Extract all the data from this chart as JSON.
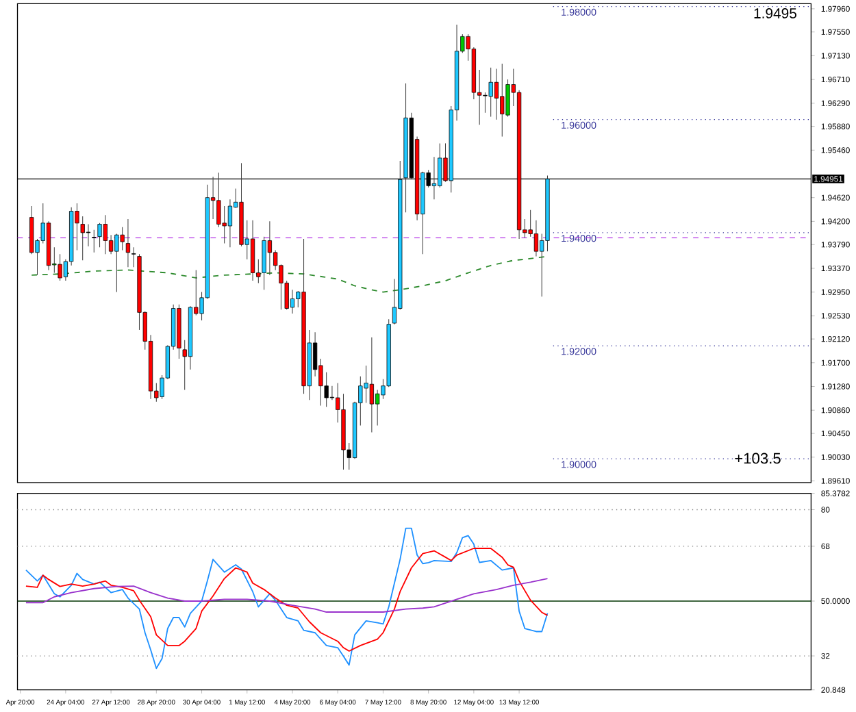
{
  "chart_data": [
    {
      "type": "candlestick",
      "ylim": [
        1.8958,
        1.9805
      ],
      "tick_labels": "y",
      "categories": [
        null,
        null,
        null,
        null,
        null,
        null,
        null,
        null,
        null,
        null,
        null,
        null,
        null,
        null,
        null,
        null,
        null,
        null,
        null,
        null,
        null,
        null,
        null,
        null,
        null,
        null,
        null,
        null,
        null,
        null,
        null,
        null,
        null,
        null,
        null,
        null,
        null,
        null,
        null,
        null,
        null,
        null,
        null,
        null,
        null,
        null,
        null,
        null,
        null,
        null,
        null,
        null,
        null,
        null,
        null,
        null,
        null,
        null,
        null,
        null,
        null,
        null,
        null,
        null,
        null,
        null,
        null,
        null,
        null,
        null,
        null,
        null,
        null,
        null,
        null,
        null,
        null,
        null,
        null,
        null,
        null,
        null,
        null,
        null,
        null,
        null,
        null,
        null,
        null,
        null,
        null,
        null,
        null,
        null,
        null,
        null,
        null,
        null,
        null,
        null,
        null,
        null,
        null,
        null,
        null,
        null,
        null,
        null,
        null,
        null,
        null,
        null,
        null,
        null,
        null,
        null,
        null,
        null,
        null,
        null,
        null,
        null,
        null,
        null,
        null,
        null,
        null,
        null,
        null,
        null,
        null,
        null,
        null,
        null,
        null,
        null,
        null,
        null,
        null,
        null
      ],
      "yticks": [
        {
          "value": 1.9796,
          "label": "1.97960"
        },
        {
          "value": 1.9755,
          "label": "1.97550"
        },
        {
          "value": 1.9713,
          "label": "1.97130"
        },
        {
          "value": 1.9671,
          "label": "1.96710"
        },
        {
          "value": 1.9629,
          "label": "1.96290"
        },
        {
          "value": 1.9588,
          "label": "1.95880"
        },
        {
          "value": 1.9546,
          "label": "1.95460"
        },
        {
          "value": 1.9462,
          "label": "1.94620"
        },
        {
          "value": 1.942,
          "label": "1.94200"
        },
        {
          "value": 1.9379,
          "label": "1.93790"
        },
        {
          "value": 1.9337,
          "label": "1.93370"
        },
        {
          "value": 1.9295,
          "label": "1.92950"
        },
        {
          "value": 1.9253,
          "label": "1.92530"
        },
        {
          "value": 1.9212,
          "label": "1.92120"
        },
        {
          "value": 1.917,
          "label": "1.91700"
        },
        {
          "value": 1.9128,
          "label": "1.91280"
        },
        {
          "value": 1.9086,
          "label": "1.90860"
        },
        {
          "value": 1.9045,
          "label": "1.90450"
        },
        {
          "value": 1.9003,
          "label": "1.90030"
        },
        {
          "value": 1.8961,
          "label": "1.89610"
        }
      ],
      "ohlc": [
        null,
        null,
        [
          1.9427,
          1.9447,
          1.9362,
          1.9365
        ],
        [
          1.9365,
          1.9389,
          1.9325,
          1.9386
        ],
        [
          1.9386,
          1.9452,
          1.9381,
          1.9417
        ],
        [
          1.9417,
          1.942,
          1.9334,
          1.9342
        ],
        [
          1.9343,
          1.9374,
          1.9329,
          1.9345
        ],
        [
          1.9344,
          1.9362,
          1.9315,
          1.932
        ],
        [
          1.9322,
          1.9353,
          1.9315,
          1.9349
        ],
        [
          1.9349,
          1.9445,
          1.9342,
          1.9438
        ],
        [
          1.9438,
          1.9452,
          1.9369,
          1.9417
        ],
        [
          1.9415,
          1.9429,
          1.9351,
          1.94
        ],
        [
          1.9401,
          1.9415,
          1.9376,
          1.94
        ],
        [
          1.9392,
          1.9405,
          1.9365,
          1.9391
        ],
        [
          1.9393,
          1.9417,
          1.9374,
          1.9415
        ],
        [
          1.9415,
          1.9431,
          1.9362,
          1.9386
        ],
        [
          1.9386,
          1.9396,
          1.9362,
          1.9367
        ],
        [
          1.9367,
          1.9398,
          1.9295,
          1.9396
        ],
        [
          1.9396,
          1.941,
          1.9369,
          1.9384
        ],
        [
          1.9381,
          1.9424,
          1.9339,
          1.9365
        ],
        [
          1.9363,
          1.9374,
          1.9339,
          1.9362
        ],
        [
          1.9358,
          1.9362,
          1.9228,
          1.9259
        ],
        [
          1.9259,
          1.9261,
          1.9193,
          1.9208
        ],
        [
          1.9208,
          1.9219,
          1.9106,
          1.912
        ],
        [
          1.912,
          1.9134,
          1.9101,
          1.9108
        ],
        [
          1.911,
          1.9148,
          1.9106,
          1.9143
        ],
        [
          1.9143,
          1.9201,
          1.9141,
          1.9199
        ],
        [
          1.9199,
          1.9273,
          1.9193,
          1.9266
        ],
        [
          1.9266,
          1.9273,
          1.9177,
          1.9196
        ],
        [
          1.9193,
          1.921,
          1.9122,
          1.9181
        ],
        [
          1.9181,
          1.927,
          1.9158,
          1.9268
        ],
        [
          1.9268,
          1.9334,
          1.9254,
          1.9257
        ],
        [
          1.9257,
          1.9295,
          1.9245,
          1.9285
        ],
        [
          1.9285,
          1.9485,
          1.9283,
          1.9462
        ],
        [
          1.9462,
          1.9499,
          1.9424,
          1.9457
        ],
        [
          1.9457,
          1.9506,
          1.941,
          1.9415
        ],
        [
          1.9417,
          1.9447,
          1.9381,
          1.9412
        ],
        [
          1.9412,
          1.9459,
          1.9374,
          1.9447
        ],
        [
          1.9445,
          1.9478,
          1.9444,
          1.9454
        ],
        [
          1.9454,
          1.9523,
          1.9376,
          1.9379
        ],
        [
          1.9379,
          1.9422,
          1.9353,
          1.9389
        ],
        [
          1.9389,
          1.9422,
          1.9315,
          1.9329
        ],
        [
          1.9329,
          1.9353,
          1.9311,
          1.9322
        ],
        [
          1.9329,
          1.9393,
          1.9299,
          1.9386
        ],
        [
          1.9386,
          1.942,
          1.9325,
          1.9365
        ],
        [
          1.9365,
          1.9369,
          1.9334,
          1.9342
        ],
        [
          1.9342,
          1.9344,
          1.9264,
          1.9311
        ],
        [
          1.9311,
          1.9315,
          1.9264,
          1.9266
        ],
        [
          1.9268,
          1.9299,
          1.9257,
          1.9283
        ],
        [
          1.9283,
          1.9297,
          1.9268,
          1.9295
        ],
        [
          1.9295,
          1.9389,
          1.9115,
          1.9129
        ],
        [
          1.9129,
          1.9228,
          1.9104,
          1.9205
        ],
        [
          1.9205,
          1.9224,
          1.9146,
          1.9158
        ],
        [
          1.9165,
          1.9177,
          1.9094,
          1.9129
        ],
        [
          1.9129,
          1.9153,
          1.9092,
          1.9108
        ],
        [
          1.9109,
          1.9129,
          1.9104,
          1.9108
        ],
        [
          1.9108,
          1.9134,
          1.9064,
          1.9087
        ],
        [
          1.9087,
          1.9115,
          1.8981,
          1.9016
        ],
        [
          1.9016,
          1.9028,
          1.8981,
          1.9002
        ],
        [
          1.9002,
          1.9101,
          1.9,
          1.9099
        ],
        [
          1.9099,
          1.9146,
          1.9059,
          1.9129
        ],
        [
          1.9125,
          1.9165,
          1.9099,
          1.9134
        ],
        [
          1.9132,
          1.9215,
          1.9047,
          1.9097
        ],
        [
          1.9097,
          1.9122,
          1.9059,
          1.9115
        ],
        [
          1.9113,
          1.9141,
          1.9106,
          1.9129
        ],
        [
          1.9129,
          1.9247,
          1.9127,
          1.9238
        ],
        [
          1.924,
          1.9318,
          1.9238,
          1.9268
        ],
        [
          1.9266,
          1.9527,
          1.9264,
          1.9494
        ],
        [
          1.9497,
          1.9664,
          1.9436,
          1.9603
        ],
        [
          1.9603,
          1.9612,
          1.9494,
          1.9497
        ],
        [
          1.9565,
          1.957,
          1.9422,
          1.9433
        ],
        [
          1.9433,
          1.9508,
          1.9362,
          1.9506
        ],
        [
          1.9506,
          1.9511,
          1.948,
          1.9483
        ],
        [
          1.9483,
          1.9534,
          1.9459,
          1.9487
        ],
        [
          1.9483,
          1.9558,
          1.948,
          1.9532
        ],
        [
          1.9532,
          1.9558,
          1.949,
          1.9492
        ],
        [
          1.9492,
          1.9624,
          1.9471,
          1.9617
        ],
        [
          1.9617,
          1.9768,
          1.9598,
          1.9721
        ],
        [
          1.9721,
          1.9751,
          1.9718,
          1.9747
        ],
        [
          1.9747,
          1.9751,
          1.9704,
          1.9725
        ],
        [
          1.9725,
          1.9728,
          1.9636,
          1.9648
        ],
        [
          1.9648,
          1.9688,
          1.9591,
          1.9643
        ],
        [
          1.9643,
          1.9648,
          1.9612,
          1.9642
        ],
        [
          1.9641,
          1.9692,
          1.9605,
          1.9666
        ],
        [
          1.9666,
          1.969,
          1.96,
          1.9638
        ],
        [
          1.9641,
          1.9699,
          1.957,
          1.961
        ],
        [
          1.9608,
          1.9671,
          1.9605,
          1.9662
        ],
        [
          1.9662,
          1.969,
          1.9624,
          1.9648
        ],
        [
          1.9648,
          1.9652,
          1.9389,
          1.9405
        ],
        [
          1.9405,
          1.9424,
          1.9391,
          1.94
        ],
        [
          1.9405,
          1.944,
          1.9393,
          1.9398
        ],
        [
          1.9398,
          1.9422,
          1.9358,
          1.9367
        ],
        [
          1.9367,
          1.9398,
          1.9287,
          1.9386
        ],
        [
          1.9386,
          1.9501,
          1.9367,
          1.9495
        ],
        null,
        null,
        null,
        null,
        null,
        null,
        null,
        null,
        null,
        null,
        null,
        null,
        null,
        null,
        null,
        null,
        null,
        null,
        null,
        null,
        null,
        null,
        null,
        null,
        null,
        null,
        null,
        null,
        null,
        null,
        null,
        null,
        null,
        null,
        null,
        null,
        null,
        null,
        null,
        null,
        null,
        null,
        null,
        null,
        null,
        null
      ],
      "colors": [
        null,
        null,
        "#ff0000",
        "#1ec8ff",
        "#1ec8ff",
        "#ff0000",
        "#00c800",
        "#ff0000",
        "#1ec8ff",
        "#1ec8ff",
        "#ff0000",
        "#ff0000",
        "#000000",
        "#000000",
        "#1ec8ff",
        "#ff0000",
        "#ff0000",
        "#1ec8ff",
        "#ff0000",
        "#ff0000",
        "#000000",
        "#ff0000",
        "#ff0000",
        "#ff0000",
        "#ff0000",
        "#1ec8ff",
        "#1ec8ff",
        "#1ec8ff",
        "#ff0000",
        "#ff0000",
        "#1ec8ff",
        "#ff0000",
        "#1ec8ff",
        "#1ec8ff",
        "#ff0000",
        "#ff0000",
        "#ff0000",
        "#1ec8ff",
        "#1ec8ff",
        "#ff0000",
        "#1ec8ff",
        "#ff0000",
        "#ff0000",
        "#1ec8ff",
        "#ff0000",
        "#ff0000",
        "#ff0000",
        "#ff0000",
        "#1ec8ff",
        "#1ec8ff",
        "#ff0000",
        "#1ec8ff",
        "#000000",
        "#ff0000",
        "#000000",
        "#000000",
        "#ff0000",
        "#ff0000",
        "#000000",
        "#1ec8ff",
        "#1ec8ff",
        "#1ec8ff",
        "#ff0000",
        "#00c800",
        "#1ec8ff",
        "#1ec8ff",
        "#1ec8ff",
        "#1ec8ff",
        "#1ec8ff",
        "#000000",
        "#ff0000",
        "#1ec8ff",
        "#000000",
        "#1ec8ff",
        "#1ec8ff",
        "#ff0000",
        "#1ec8ff",
        "#1ec8ff",
        "#00c800",
        "#ff0000",
        "#ff0000",
        "#ff0000",
        "#000000",
        "#1ec8ff",
        "#ff0000",
        "#ff0000",
        "#00c800",
        "#ff0000",
        "#ff0000",
        "#ff0000",
        "#ff0000",
        "#ff0000",
        "#1ec8ff",
        "#1ec8ff",
        null,
        null,
        null,
        null,
        null,
        null,
        null,
        null,
        null,
        null,
        null,
        null,
        null,
        null,
        null,
        null,
        null,
        null,
        null,
        null,
        null,
        null,
        null,
        null,
        null,
        null,
        null,
        null,
        null,
        null,
        null,
        null,
        null,
        null,
        null,
        null,
        null,
        null,
        null,
        null,
        null,
        null,
        null,
        null,
        null,
        null
      ],
      "series": [
        {
          "type": "line",
          "color": "#2e8b2e",
          "line_style": "dashed",
          "values": [
            null,
            null,
            1.9325,
            null,
            null,
            null,
            null,
            1.9327,
            null,
            null,
            null,
            null,
            null,
            1.9332,
            null,
            null,
            null,
            null,
            null,
            1.9334,
            null,
            null,
            null,
            null,
            null,
            null,
            1.9329,
            null,
            null,
            null,
            null,
            1.932,
            null,
            null,
            null,
            null,
            1.9325,
            null,
            null,
            null,
            null,
            1.9327,
            null,
            null,
            null,
            1.9329,
            null,
            null,
            null,
            null,
            1.9327,
            null,
            null,
            null,
            null,
            null,
            1.9318,
            null,
            null,
            1.9306,
            null,
            null,
            1.9299,
            null,
            1.9295,
            null,
            null,
            1.9299,
            null,
            null,
            null,
            1.9306,
            null,
            null,
            null,
            1.9315,
            null,
            null,
            null,
            1.9329,
            null,
            null,
            null,
            1.9342,
            null,
            null,
            null,
            1.9351,
            null,
            1.9353,
            null,
            null,
            null,
            1.9358,
            null,
            null,
            null,
            null,
            null,
            null,
            null,
            null,
            null,
            null,
            null,
            null,
            null,
            null,
            null,
            null,
            null,
            null,
            null,
            null,
            null,
            null,
            null,
            null,
            null,
            null,
            null,
            null,
            null,
            null,
            null,
            null,
            null,
            null,
            null,
            null,
            null,
            null,
            null,
            null,
            null,
            null,
            null,
            null,
            null,
            null
          ]
        }
      ],
      "ref_lines": [
        {
          "axis": "y",
          "value": 1.98,
          "label": "1.98000",
          "color": "#3c3c9c",
          "line_style": "dotted"
        },
        {
          "axis": "y",
          "value": 1.96,
          "label": "1.96000",
          "color": "#3c3c9c",
          "line_style": "dotted"
        },
        {
          "axis": "y",
          "value": 1.94,
          "label": "1.94000",
          "color": "#3c3c9c",
          "line_style": "dotted"
        },
        {
          "axis": "y",
          "value": 1.92,
          "label": "1.92000",
          "color": "#3c3c9c",
          "line_style": "dotted"
        },
        {
          "axis": "y",
          "value": 1.9,
          "label": "1.90000",
          "color": "#3c3c9c",
          "line_style": "dotted"
        },
        {
          "axis": "y",
          "value": 1.9391,
          "color": "#b432e6",
          "line_style": "dashed"
        },
        {
          "axis": "y",
          "value": 1.94951,
          "label": "1.94951",
          "color": "#000000",
          "line_style": "solid"
        }
      ],
      "annotations": [
        "1.9495",
        "+103.5"
      ]
    },
    {
      "type": "line",
      "ylim": [
        20.848,
        85.3782
      ],
      "categories": [
        "Apr 20:00",
        null,
        null,
        null,
        null,
        null,
        null,
        null,
        "24 Apr 04:00",
        null,
        null,
        null,
        null,
        null,
        null,
        null,
        "27 Apr 12:00",
        null,
        null,
        null,
        null,
        null,
        null,
        null,
        "28 Apr 20:00",
        null,
        null,
        null,
        null,
        null,
        null,
        null,
        "30 Apr 04:00",
        null,
        null,
        null,
        null,
        null,
        null,
        null,
        "1 May 12:00",
        null,
        null,
        null,
        null,
        null,
        null,
        null,
        "4 May 20:00",
        null,
        null,
        null,
        null,
        null,
        null,
        null,
        "6 May 04:00",
        null,
        null,
        null,
        null,
        null,
        null,
        null,
        "7 May 12:00",
        null,
        null,
        null,
        null,
        null,
        null,
        null,
        "8 May 20:00",
        null,
        null,
        null,
        null,
        null,
        null,
        null,
        "12 May 04:00",
        null,
        null,
        null,
        null,
        null,
        null,
        null,
        "13 May 12:00",
        null,
        null,
        null,
        null,
        null,
        null,
        null,
        null,
        null,
        null,
        null,
        null,
        null,
        null,
        null,
        null,
        null,
        null,
        null,
        null,
        null,
        null,
        null,
        null,
        null,
        null,
        null,
        null,
        null,
        null,
        null,
        null,
        null,
        null,
        null,
        null,
        null,
        null,
        null,
        null,
        null,
        null,
        null,
        null,
        null,
        null,
        null,
        null,
        null,
        null,
        null
      ],
      "yticks": [
        {
          "value": 85.3782,
          "label": "85.3782"
        },
        80,
        68,
        {
          "value": 50,
          "label": "50.0000"
        },
        32,
        {
          "value": 20.848,
          "label": "20.848"
        }
      ],
      "series": [
        {
          "color": "#1e90ff",
          "values": [
            null,
            60.2,
            null,
            56.6,
            58.5,
            null,
            52.4,
            51.4,
            null,
            55.2,
            59.1,
            57.1,
            null,
            55.6,
            56.2,
            null,
            52.8,
            null,
            53.8,
            51.0,
            null,
            47.4,
            39.6,
            34.0,
            27.9,
            31.1,
            41.0,
            44.6,
            44.6,
            41.5,
            46.0,
            null,
            50.0,
            56.6,
            63.7,
            null,
            59.5,
            null,
            61.9,
            60.5,
            null,
            53.1,
            48.1,
            null,
            52.4,
            50.3,
            null,
            44.6,
            null,
            43.5,
            40.4,
            null,
            39.6,
            null,
            35.4,
            null,
            34.7,
            31.9,
            29.0,
            38.9,
            null,
            43.5,
            null,
            42.9,
            42.5,
            48.1,
            null,
            63.7,
            73.9,
            73.9,
            65.1,
            62.3,
            62.6,
            63.3,
            null,
            null,
            63.0,
            65.9,
            70.8,
            71.5,
            68.7,
            62.7,
            null,
            63.3,
            null,
            60.2,
            null,
            60.9,
            46.7,
            41.0,
            null,
            40.0,
            40.0,
            46.0,
            null,
            null,
            null,
            null,
            null,
            null,
            null,
            null,
            null,
            null,
            null,
            null,
            null,
            null,
            null,
            null,
            null,
            null,
            null,
            null,
            null,
            null,
            null,
            null,
            null,
            null,
            null,
            null,
            null,
            null,
            null,
            null,
            null,
            null,
            null,
            null,
            null,
            null,
            null,
            null,
            null,
            null,
            null,
            null,
            null,
            null
          ]
        },
        {
          "color": "#ff0000",
          "values": [
            null,
            54.9,
            null,
            54.5,
            58.5,
            57.1,
            null,
            54.8,
            null,
            55.6,
            null,
            54.9,
            null,
            55.6,
            null,
            56.6,
            55.2,
            null,
            54.5,
            null,
            53.4,
            50.3,
            null,
            44.9,
            38.9,
            null,
            35.4,
            null,
            35.4,
            36.8,
            null,
            41.0,
            46.7,
            null,
            51.7,
            null,
            57.4,
            null,
            60.9,
            null,
            59.5,
            55.9,
            null,
            53.8,
            null,
            51.0,
            null,
            48.6,
            null,
            47.7,
            null,
            43.2,
            null,
            39.6,
            null,
            null,
            36.8,
            34.7,
            33.6,
            null,
            35.4,
            null,
            null,
            37.5,
            39.6,
            null,
            47.4,
            53.1,
            null,
            60.9,
            null,
            65.6,
            null,
            66.5,
            null,
            64.4,
            63.3,
            65.1,
            null,
            null,
            67.3,
            null,
            null,
            67.3,
            null,
            64.4,
            61.9,
            61.1,
            56.6,
            null,
            50.3,
            null,
            46.3,
            45.3,
            null,
            null,
            null,
            null,
            null,
            null,
            null,
            null,
            null,
            null,
            null,
            null,
            null,
            null,
            null,
            null,
            null,
            null,
            null,
            null,
            null,
            null,
            null,
            null,
            null,
            null,
            null,
            null,
            null,
            null,
            null,
            null,
            null,
            null,
            null,
            null,
            null,
            null,
            null,
            null,
            null,
            null,
            null,
            null,
            null,
            null
          ]
        },
        {
          "color": "#9932cc",
          "values": [
            null,
            49.5,
            null,
            null,
            49.5,
            null,
            51.4,
            null,
            null,
            52.8,
            null,
            null,
            null,
            54.1,
            null,
            null,
            null,
            54.8,
            null,
            null,
            54.9,
            null,
            null,
            52.8,
            null,
            null,
            51.0,
            null,
            null,
            50.0,
            null,
            null,
            50.0,
            null,
            null,
            null,
            50.6,
            null,
            null,
            null,
            50.6,
            null,
            null,
            null,
            50.0,
            null,
            null,
            null,
            48.6,
            null,
            null,
            null,
            47.4,
            null,
            46.4,
            null,
            null,
            null,
            null,
            46.4,
            null,
            null,
            null,
            null,
            46.4,
            null,
            null,
            null,
            47.4,
            null,
            null,
            47.7,
            null,
            48.1,
            null,
            null,
            null,
            50.6,
            null,
            null,
            52.4,
            null,
            null,
            null,
            53.8,
            null,
            null,
            55.2,
            null,
            null,
            56.2,
            null,
            null,
            57.4,
            null,
            null,
            null,
            null,
            null,
            null,
            null,
            null,
            null,
            null,
            null,
            null,
            null,
            null,
            null,
            null,
            null,
            null,
            null,
            null,
            null,
            null,
            null,
            null,
            null,
            null,
            null,
            null,
            null,
            null,
            null,
            null,
            null,
            null,
            null,
            null,
            null,
            null,
            null,
            null,
            null,
            null,
            null,
            null,
            null,
            null
          ]
        }
      ],
      "ref_lines": [
        {
          "axis": "y",
          "value": 80,
          "color": "#808080",
          "line_style": "dotted"
        },
        {
          "axis": "y",
          "value": 68,
          "color": "#808080",
          "line_style": "dotted"
        },
        {
          "axis": "y",
          "value": 50,
          "color": "#003300",
          "line_style": "solid"
        },
        {
          "axis": "y",
          "value": 32,
          "color": "#808080",
          "line_style": "dotted"
        }
      ]
    }
  ]
}
